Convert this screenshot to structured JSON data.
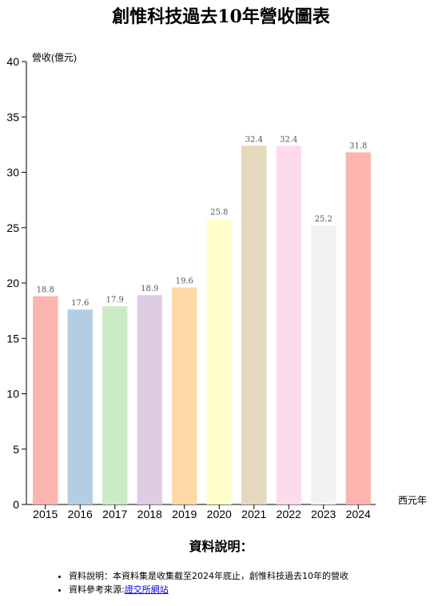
{
  "page": {
    "title": "創惟科技過去10年營收圖表"
  },
  "chart_data": {
    "type": "bar",
    "title": "創惟科技過去10年營收圖表",
    "xlabel": "西元年",
    "ylabel": "營收(億元)",
    "categories": [
      "2015",
      "2016",
      "2017",
      "2018",
      "2019",
      "2020",
      "2021",
      "2022",
      "2023",
      "2024"
    ],
    "values": [
      18.8,
      17.6,
      17.9,
      18.9,
      19.6,
      25.8,
      32.4,
      32.4,
      25.2,
      31.8
    ],
    "data_labels": [
      "18.8",
      "17.6",
      "17.9",
      "18.9",
      "19.6",
      "25.8",
      "32.4",
      "32.4",
      "25.2",
      "31.8"
    ],
    "colors": [
      "#fbb4ae",
      "#b3cde3",
      "#ccebc5",
      "#decbe4",
      "#fed9a6",
      "#ffffcc",
      "#e5d8bd",
      "#fddaec",
      "#f2f2f2",
      "#fbb4ae"
    ],
    "ylim": [
      0,
      40
    ],
    "yticks": [
      0,
      5,
      10,
      15,
      20,
      25,
      30,
      35,
      40
    ],
    "grid": false,
    "legend": "none"
  },
  "notes": {
    "heading": "資料說明：",
    "items": [
      {
        "text": "資料說明：本資料集是收集截至2024年底止，創惟科技過去10年的營收"
      },
      {
        "text": "資料參考來源:",
        "link_text": "證交所網站"
      }
    ]
  }
}
